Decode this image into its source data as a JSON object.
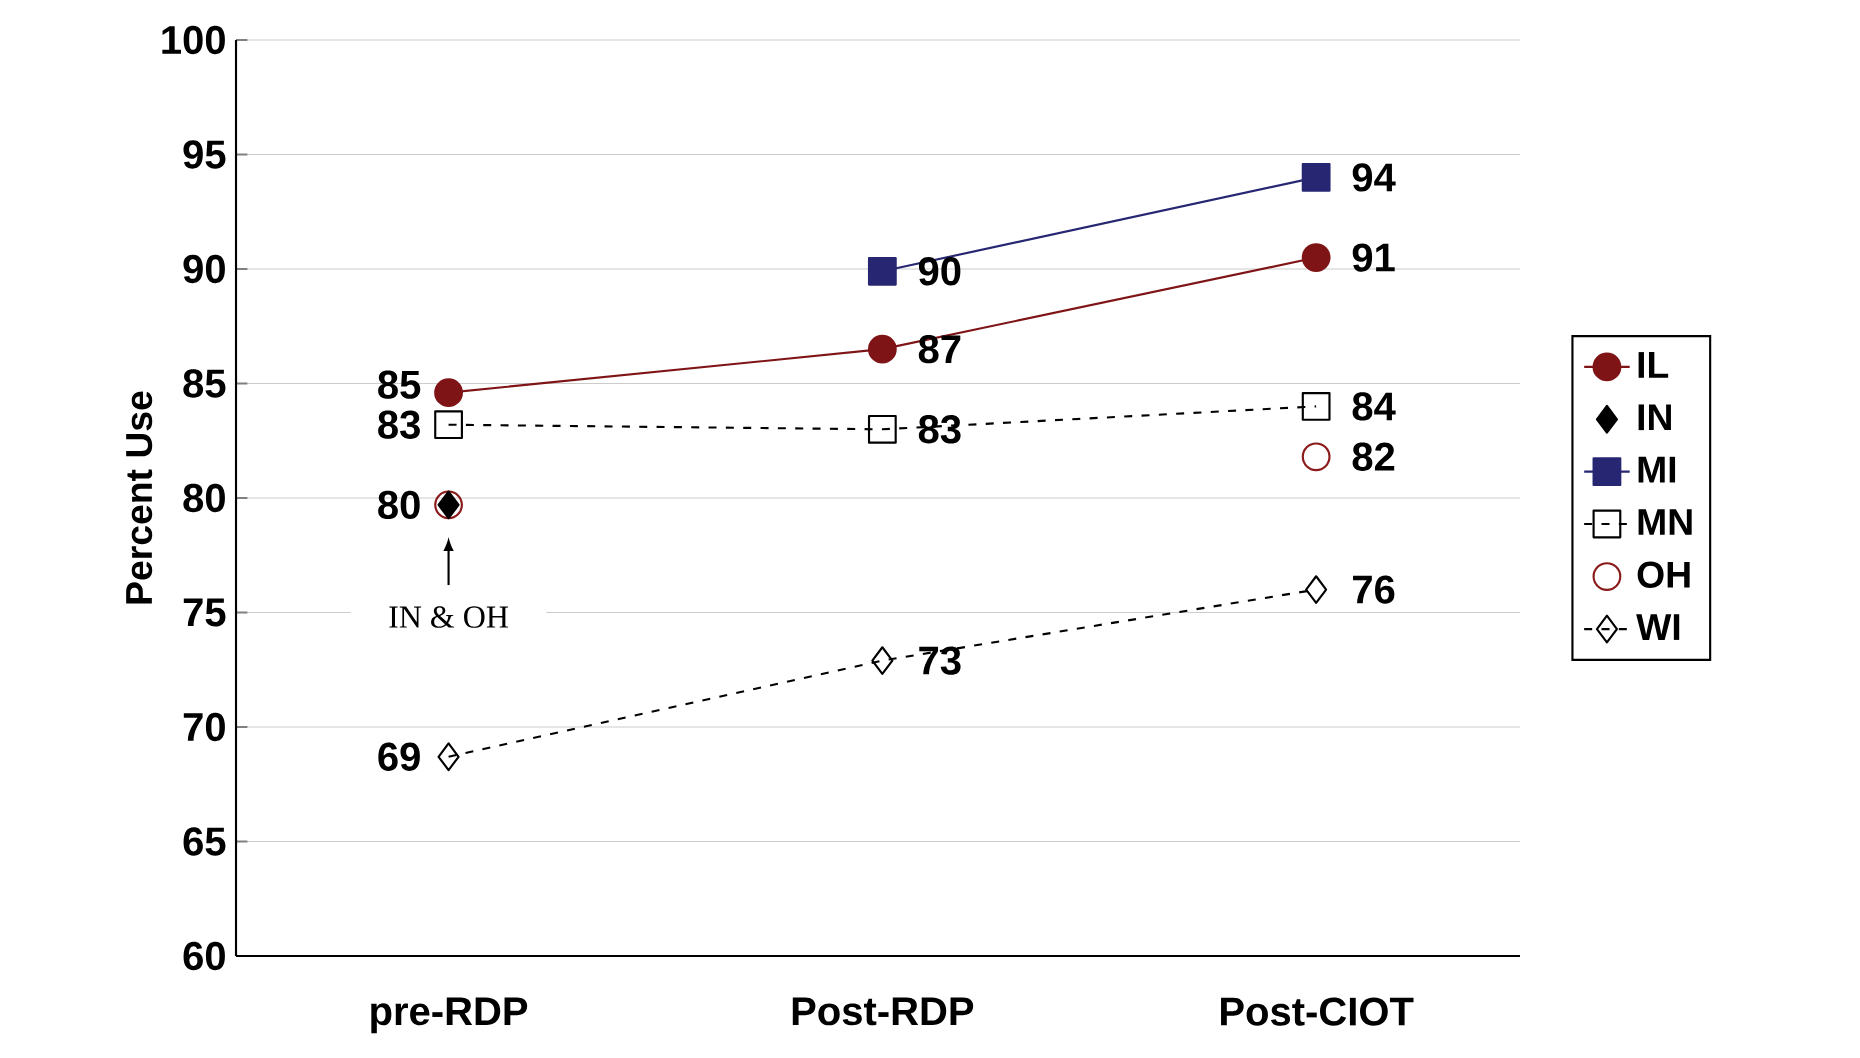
{
  "chart_data": {
    "type": "line",
    "ylabel": "Percent Use",
    "categories": [
      "pre-RDP",
      "Post-RDP",
      "Post-CIOT"
    ],
    "series": [
      {
        "name": "IL",
        "color": "#7f1416",
        "marker": "circle",
        "line_style": "solid",
        "values": [
          84.6,
          86.5,
          90.5
        ],
        "value_labels": [
          "85",
          "87",
          "91"
        ]
      },
      {
        "name": "IN",
        "type": "scatter",
        "color": "#000000",
        "marker": "diamond",
        "values": [
          79.7,
          null,
          null
        ],
        "value_labels": [
          "80",
          null,
          null
        ]
      },
      {
        "name": "MI",
        "color": "#262673",
        "marker": "square",
        "line_style": "solid",
        "values": [
          null,
          89.9,
          94.0
        ],
        "value_labels": [
          null,
          "90",
          "94"
        ]
      },
      {
        "name": "MN",
        "color": "#000000",
        "marker": "square",
        "line_style": "dashed",
        "values": [
          83.2,
          83.0,
          84.0
        ],
        "value_labels": [
          "83",
          "83",
          "84"
        ]
      },
      {
        "name": "OH",
        "type": "scatter",
        "color": "#8b1a1a",
        "marker": "circle",
        "values": [
          79.7,
          null,
          81.8
        ],
        "value_labels": [
          null,
          null,
          "82"
        ]
      },
      {
        "name": "WI",
        "color": "#000000",
        "marker": "diamond",
        "line_style": "dashed",
        "values": [
          68.7,
          72.9,
          76.0
        ],
        "value_labels": [
          "69",
          "73",
          "76"
        ]
      }
    ],
    "ylim": [
      60,
      100
    ],
    "yticks": [
      60,
      65,
      70,
      75,
      80,
      85,
      90,
      95,
      100
    ],
    "grid": "y",
    "legend": "right",
    "annotations": [
      "IN & OH"
    ]
  }
}
